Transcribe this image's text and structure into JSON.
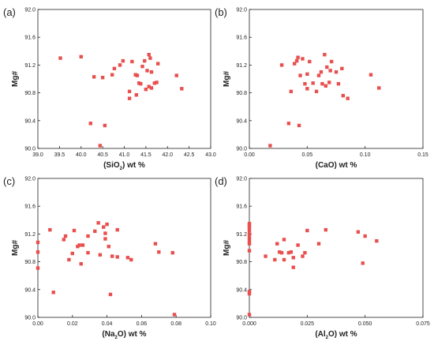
{
  "chart_data": [
    {
      "type": "scatter",
      "panel_label": "(a)",
      "xlabel": {
        "prefix": "(SiO",
        "sub": "2",
        "suffix": ") wt %"
      },
      "ylabel": "Mg#",
      "xlim": [
        39.0,
        43.0
      ],
      "ylim": [
        90.0,
        92.0
      ],
      "xticks": [
        "39.0",
        "39.5",
        "40.0",
        "40.5",
        "41.0",
        "41.5",
        "42.0",
        "42.5",
        "43.0"
      ],
      "yticks": [
        "90.0",
        "90.4",
        "90.8",
        "91.2",
        "91.6",
        "92.0"
      ],
      "marker_color": "#e8504e",
      "points": [
        [
          39.52,
          91.3
        ],
        [
          40.0,
          91.32
        ],
        [
          40.22,
          90.36
        ],
        [
          40.3,
          91.03
        ],
        [
          40.44,
          90.04
        ],
        [
          40.55,
          90.33
        ],
        [
          40.5,
          91.02
        ],
        [
          40.72,
          91.06
        ],
        [
          40.77,
          91.15
        ],
        [
          40.9,
          91.2
        ],
        [
          40.97,
          91.26
        ],
        [
          41.12,
          90.72
        ],
        [
          41.12,
          90.82
        ],
        [
          41.18,
          91.25
        ],
        [
          41.26,
          91.06
        ],
        [
          41.28,
          90.77
        ],
        [
          41.3,
          91.05
        ],
        [
          41.34,
          90.94
        ],
        [
          41.38,
          90.93
        ],
        [
          41.42,
          91.18
        ],
        [
          41.47,
          91.26
        ],
        [
          41.5,
          90.85
        ],
        [
          41.53,
          91.12
        ],
        [
          41.57,
          91.35
        ],
        [
          41.6,
          91.3
        ],
        [
          41.57,
          90.89
        ],
        [
          41.63,
          90.87
        ],
        [
          41.63,
          91.1
        ],
        [
          41.7,
          90.94
        ],
        [
          41.75,
          90.95
        ],
        [
          41.78,
          91.22
        ],
        [
          42.21,
          91.05
        ],
        [
          42.33,
          90.86
        ]
      ]
    },
    {
      "type": "scatter",
      "panel_label": "(b)",
      "xlabel": {
        "prefix": "(CaO) wt %",
        "sub": "",
        "suffix": ""
      },
      "ylabel": "Mg#",
      "xlim": [
        0.0,
        0.15
      ],
      "ylim": [
        90.0,
        92.0
      ],
      "xticks": [
        "0.00",
        "0.05",
        "0.10",
        "0.15"
      ],
      "yticks": [
        "90.0",
        "90.4",
        "90.8",
        "91.2",
        "91.6",
        "92.0"
      ],
      "marker_color": "#e8504e",
      "points": [
        [
          0.018,
          90.04
        ],
        [
          0.028,
          91.2
        ],
        [
          0.034,
          90.36
        ],
        [
          0.036,
          90.82
        ],
        [
          0.039,
          91.22
        ],
        [
          0.041,
          91.26
        ],
        [
          0.042,
          91.31
        ],
        [
          0.043,
          90.33
        ],
        [
          0.044,
          91.05
        ],
        [
          0.046,
          91.29
        ],
        [
          0.048,
          90.93
        ],
        [
          0.05,
          91.07
        ],
        [
          0.05,
          90.86
        ],
        [
          0.052,
          91.25
        ],
        [
          0.055,
          90.94
        ],
        [
          0.058,
          90.82
        ],
        [
          0.06,
          91.05
        ],
        [
          0.062,
          91.1
        ],
        [
          0.063,
          90.93
        ],
        [
          0.065,
          91.35
        ],
        [
          0.066,
          90.9
        ],
        [
          0.067,
          91.17
        ],
        [
          0.069,
          90.95
        ],
        [
          0.07,
          91.12
        ],
        [
          0.071,
          91.25
        ],
        [
          0.075,
          91.1
        ],
        [
          0.077,
          90.93
        ],
        [
          0.08,
          91.15
        ],
        [
          0.081,
          90.76
        ],
        [
          0.085,
          90.72
        ],
        [
          0.105,
          91.06
        ],
        [
          0.112,
          90.87
        ]
      ]
    },
    {
      "type": "scatter",
      "panel_label": "(c)",
      "xlabel": {
        "prefix": "(Na",
        "sub": "2",
        "suffix": "O) wt %"
      },
      "ylabel": "Mg#",
      "xlim": [
        0.0,
        0.1
      ],
      "ylim": [
        90.0,
        92.0
      ],
      "xticks": [
        "0.00",
        "0.02",
        "0.04",
        "0.06",
        "0.08",
        "0.10"
      ],
      "yticks": [
        "90.0",
        "90.4",
        "90.8",
        "91.2",
        "91.6",
        "92.0"
      ],
      "marker_color": "#e8504e",
      "points": [
        [
          0.0,
          91.08
        ],
        [
          0.0,
          90.94
        ],
        [
          0.0,
          90.71
        ],
        [
          0.007,
          91.26
        ],
        [
          0.009,
          90.36
        ],
        [
          0.015,
          91.12
        ],
        [
          0.016,
          91.17
        ],
        [
          0.018,
          90.83
        ],
        [
          0.02,
          90.92
        ],
        [
          0.021,
          91.25
        ],
        [
          0.023,
          91.02
        ],
        [
          0.024,
          91.04
        ],
        [
          0.025,
          90.77
        ],
        [
          0.026,
          91.04
        ],
        [
          0.029,
          91.17
        ],
        [
          0.029,
          90.93
        ],
        [
          0.033,
          91.24
        ],
        [
          0.035,
          91.36
        ],
        [
          0.036,
          90.9
        ],
        [
          0.038,
          91.3
        ],
        [
          0.039,
          91.13
        ],
        [
          0.039,
          91.21
        ],
        [
          0.04,
          91.34
        ],
        [
          0.041,
          91.02
        ],
        [
          0.042,
          90.33
        ],
        [
          0.043,
          90.88
        ],
        [
          0.046,
          91.26
        ],
        [
          0.046,
          90.87
        ],
        [
          0.052,
          90.86
        ],
        [
          0.054,
          90.83
        ],
        [
          0.068,
          91.06
        ],
        [
          0.07,
          90.94
        ],
        [
          0.078,
          90.93
        ],
        [
          0.079,
          90.04
        ]
      ]
    },
    {
      "type": "scatter",
      "panel_label": "(d)",
      "xlabel": {
        "prefix": "(Al",
        "sub": "2",
        "suffix": "O) wt %"
      },
      "ylabel": "Mg#",
      "xlim": [
        0.0,
        0.075
      ],
      "ylim": [
        90.0,
        92.0
      ],
      "xticks": [
        "0.000",
        "0.025",
        "0.050",
        "0.075"
      ],
      "yticks": [
        "90.0",
        "90.4",
        "90.8",
        "91.2",
        "91.6",
        "92.0"
      ],
      "marker_color": "#e8504e",
      "points": [
        [
          0.0,
          91.35
        ],
        [
          0.0,
          91.32
        ],
        [
          0.0,
          91.29
        ],
        [
          0.0,
          91.25
        ],
        [
          0.0,
          91.2
        ],
        [
          0.0,
          91.15
        ],
        [
          0.0,
          91.1
        ],
        [
          0.0,
          91.06
        ],
        [
          0.0,
          90.96
        ],
        [
          0.0,
          90.37
        ],
        [
          0.0,
          90.34
        ],
        [
          0.0,
          90.04
        ],
        [
          0.007,
          90.88
        ],
        [
          0.011,
          90.83
        ],
        [
          0.012,
          91.06
        ],
        [
          0.013,
          90.94
        ],
        [
          0.014,
          90.93
        ],
        [
          0.015,
          91.12
        ],
        [
          0.015,
          90.83
        ],
        [
          0.017,
          90.93
        ],
        [
          0.018,
          90.94
        ],
        [
          0.019,
          90.86
        ],
        [
          0.019,
          90.72
        ],
        [
          0.021,
          91.04
        ],
        [
          0.023,
          90.88
        ],
        [
          0.024,
          90.93
        ],
        [
          0.025,
          91.25
        ],
        [
          0.03,
          91.06
        ],
        [
          0.033,
          91.26
        ],
        [
          0.047,
          91.23
        ],
        [
          0.05,
          91.17
        ],
        [
          0.049,
          90.78
        ],
        [
          0.055,
          91.1
        ]
      ]
    }
  ]
}
